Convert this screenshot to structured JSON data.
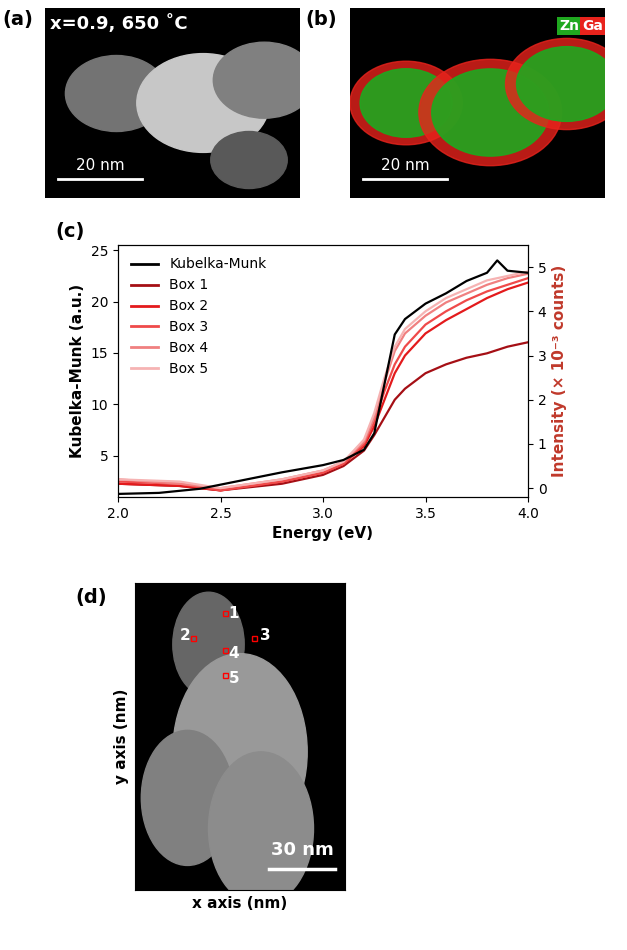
{
  "panel_a": {
    "label": "(a)",
    "caption": "x=0.9, 650 ˚C",
    "scale_bar": "20 nm"
  },
  "panel_b": {
    "label": "(b)",
    "scale_bar": "20 nm",
    "elements": [
      {
        "name": "Zn",
        "color": "#1fa81f"
      },
      {
        "name": "Ga",
        "color": "#e8231c"
      }
    ]
  },
  "chart_data": {
    "type": "line",
    "panel_label": "(c)",
    "x_label": "Energy (eV)",
    "y_label": "Kubelka-Munk (a.u.)",
    "y2_label": "Intensity (× 10⁻³ counts)",
    "xlim": [
      2.0,
      4.0
    ],
    "xticks": [
      {
        "value": 2.0,
        "label": "2.0"
      },
      {
        "value": 2.5,
        "label": "2.5"
      },
      {
        "value": 3.0,
        "label": "3.0"
      },
      {
        "value": 3.5,
        "label": "3.5"
      },
      {
        "value": 4.0,
        "label": "4.0"
      }
    ],
    "ylim": [
      1.0,
      25.5
    ],
    "yticks": [
      5,
      10,
      15,
      20,
      25
    ],
    "y2lim": [
      -0.2,
      5.5
    ],
    "y2ticks": [
      0,
      1,
      2,
      3,
      4,
      5
    ],
    "legend": "upper left",
    "series": [
      {
        "name": "Kubelka-Munk",
        "color": "#000000",
        "axis": "y",
        "x": [
          2.0,
          2.2,
          2.4,
          2.6,
          2.8,
          3.0,
          3.1,
          3.2,
          3.25,
          3.3,
          3.35,
          3.4,
          3.5,
          3.6,
          3.7,
          3.8,
          3.85,
          3.9,
          4.0
        ],
        "values": [
          1.3,
          1.4,
          1.8,
          2.6,
          3.4,
          4.1,
          4.6,
          5.6,
          7.2,
          12.0,
          16.8,
          18.3,
          19.8,
          20.8,
          22.0,
          22.8,
          24.0,
          23.0,
          22.8
        ]
      },
      {
        "name": "Box 1",
        "color": "#a50f15",
        "axis": "y2",
        "x": [
          2.0,
          2.3,
          2.5,
          2.8,
          3.0,
          3.1,
          3.2,
          3.25,
          3.3,
          3.35,
          3.4,
          3.5,
          3.6,
          3.7,
          3.8,
          3.9,
          4.0
        ],
        "values": [
          0.1,
          0.05,
          -0.05,
          0.1,
          0.3,
          0.5,
          0.85,
          1.2,
          1.6,
          2.0,
          2.25,
          2.6,
          2.8,
          2.95,
          3.05,
          3.2,
          3.3
        ]
      },
      {
        "name": "Box 2",
        "color": "#e31a1c",
        "axis": "y2",
        "x": [
          2.0,
          2.3,
          2.5,
          2.8,
          3.0,
          3.1,
          3.2,
          3.25,
          3.3,
          3.35,
          3.4,
          3.5,
          3.6,
          3.7,
          3.8,
          3.9,
          4.0
        ],
        "values": [
          0.1,
          0.05,
          -0.05,
          0.15,
          0.35,
          0.55,
          0.95,
          1.4,
          2.0,
          2.6,
          3.0,
          3.5,
          3.8,
          4.05,
          4.3,
          4.5,
          4.65
        ]
      },
      {
        "name": "Box 3",
        "color": "#ef4a4a",
        "axis": "y2",
        "x": [
          2.0,
          2.3,
          2.5,
          2.8,
          3.0,
          3.1,
          3.2,
          3.25,
          3.3,
          3.35,
          3.4,
          3.5,
          3.6,
          3.7,
          3.8,
          3.9,
          4.0
        ],
        "values": [
          0.15,
          0.1,
          -0.05,
          0.15,
          0.35,
          0.55,
          1.0,
          1.5,
          2.2,
          2.8,
          3.2,
          3.7,
          4.0,
          4.25,
          4.45,
          4.6,
          4.75
        ]
      },
      {
        "name": "Box 4",
        "color": "#f08080",
        "axis": "y2",
        "x": [
          2.0,
          2.3,
          2.5,
          2.8,
          3.0,
          3.1,
          3.2,
          3.25,
          3.3,
          3.35,
          3.4,
          3.5,
          3.6,
          3.7,
          3.8,
          3.9,
          4.0
        ],
        "values": [
          0.2,
          0.1,
          0.0,
          0.2,
          0.4,
          0.6,
          1.05,
          1.6,
          2.4,
          3.1,
          3.5,
          3.9,
          4.2,
          4.4,
          4.6,
          4.75,
          4.85
        ]
      },
      {
        "name": "Box 5",
        "color": "#f6b3b3",
        "axis": "y2",
        "x": [
          2.0,
          2.3,
          2.5,
          2.8,
          3.0,
          3.1,
          3.2,
          3.25,
          3.3,
          3.35,
          3.4,
          3.5,
          3.6,
          3.7,
          3.8,
          3.9,
          4.0
        ],
        "values": [
          0.2,
          0.15,
          0.0,
          0.2,
          0.4,
          0.6,
          1.1,
          1.7,
          2.5,
          3.2,
          3.6,
          4.0,
          4.3,
          4.5,
          4.7,
          4.8,
          4.9
        ]
      }
    ]
  },
  "panel_d": {
    "label": "(d)",
    "x_label": "x axis (nm)",
    "y_label": "y axis (nm)",
    "scale_bar": "30 nm",
    "points": [
      "1",
      "2",
      "3",
      "4",
      "5"
    ]
  }
}
